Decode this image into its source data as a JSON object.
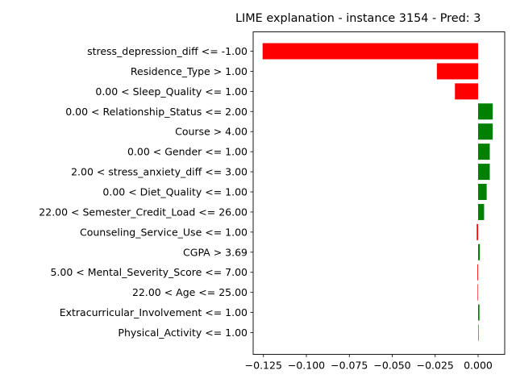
{
  "chart_data": {
    "type": "bar",
    "orientation": "horizontal",
    "title": "LIME explanation - instance 3154 - Pred: 3",
    "categories": [
      "stress_depression_diff <= -1.00",
      "Residence_Type > 1.00",
      "0.00 < Sleep_Quality <= 1.00",
      "0.00 < Relationship_Status <= 2.00",
      "Course > 4.00",
      "0.00 < Gender <= 1.00",
      "2.00 < stress_anxiety_diff <= 3.00",
      "0.00 < Diet_Quality <= 1.00",
      "22.00 < Semester_Credit_Load <= 26.00",
      "Counseling_Service_Use <= 1.00",
      "CGPA > 3.69",
      "5.00 < Mental_Severity_Score <= 7.00",
      "22.00 < Age <= 25.00",
      "Extracurricular_Involvement <= 1.00",
      "Physical_Activity <= 1.00"
    ],
    "values": [
      -0.1255,
      -0.024,
      -0.0135,
      0.0085,
      0.0085,
      0.0068,
      0.0068,
      0.005,
      0.0035,
      -0.0008,
      0.001,
      -0.0004,
      -0.0003,
      0.0008,
      0.0003
    ],
    "xlim": [
      -0.131,
      0.0155
    ],
    "xticks": [
      -0.125,
      -0.1,
      -0.075,
      -0.05,
      -0.025,
      0.0
    ],
    "xtick_labels": [
      "−0.125",
      "−0.100",
      "−0.075",
      "−0.050",
      "−0.025",
      "0.000"
    ],
    "xlabel": "",
    "ylabel": "",
    "grid": false,
    "colors": {
      "positive": "#008000",
      "negative": "#ff0000",
      "axis": "#000000"
    }
  }
}
